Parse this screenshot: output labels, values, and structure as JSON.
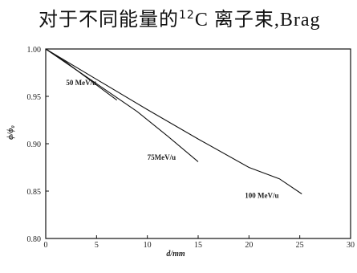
{
  "header": {
    "text_main": "对于不同能量的",
    "text_sup": "12",
    "text_tail": "C 离子束,Brag"
  },
  "chart_data": {
    "type": "line",
    "xlabel": "d/mm",
    "ylabel": "ϕ/ϕ₀",
    "xlim": [
      0,
      30
    ],
    "ylim": [
      0.8,
      1.0
    ],
    "x_ticks": [
      0,
      5,
      10,
      15,
      20,
      25,
      30
    ],
    "y_ticks": [
      0.8,
      0.85,
      0.9,
      0.95,
      1.0
    ],
    "x_tick_labels": [
      "0",
      "5",
      "10",
      "15",
      "20",
      "25",
      "30"
    ],
    "y_tick_labels": [
      "0.80",
      "0.85",
      "0.90",
      "0.95",
      "1.00"
    ],
    "grid": false,
    "series": [
      {
        "name": "50 MeV/u",
        "points": [
          [
            0,
            1.0
          ],
          [
            2,
            0.986
          ],
          [
            4,
            0.97
          ],
          [
            6,
            0.954
          ],
          [
            7,
            0.946
          ]
        ],
        "label_at": [
          2,
          0.962
        ]
      },
      {
        "name": "75MeV/u",
        "points": [
          [
            0,
            1.0
          ],
          [
            3,
            0.978
          ],
          [
            6,
            0.956
          ],
          [
            9,
            0.934
          ],
          [
            12,
            0.908
          ],
          [
            15,
            0.881
          ]
        ],
        "label_at": [
          10,
          0.883
        ]
      },
      {
        "name": "100 MeV/u",
        "points": [
          [
            0,
            1.0
          ],
          [
            5,
            0.968
          ],
          [
            10,
            0.936
          ],
          [
            15,
            0.905
          ],
          [
            20,
            0.875
          ],
          [
            23,
            0.863
          ],
          [
            25.2,
            0.847
          ]
        ],
        "label_at": [
          19.6,
          0.843
        ]
      }
    ]
  }
}
